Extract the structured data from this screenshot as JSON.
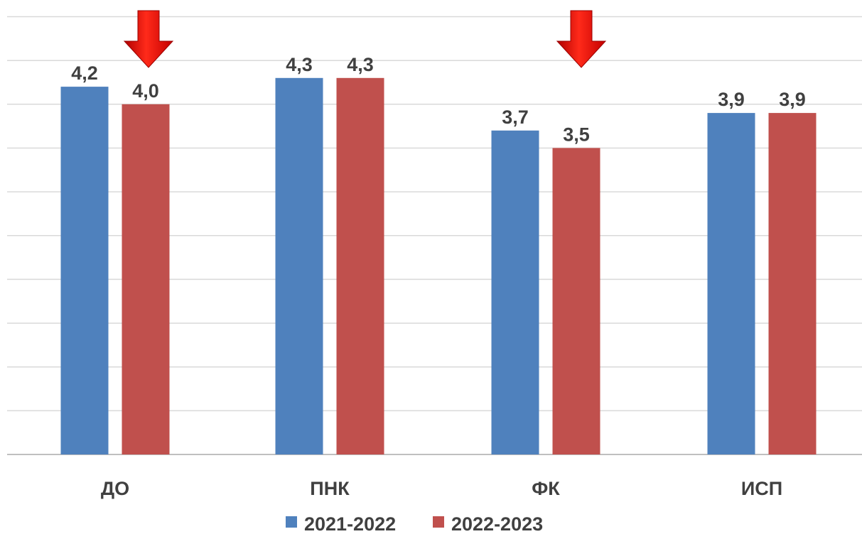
{
  "chart_data": {
    "type": "bar",
    "categories": [
      "ДО",
      "ПНК",
      "ФК",
      "ИСП"
    ],
    "series": [
      {
        "name": "2021-2022",
        "color": "#4f81bd",
        "values": [
          4.2,
          4.3,
          3.7,
          3.9
        ],
        "labels": [
          "4,2",
          "4,3",
          "3,7",
          "3,9"
        ]
      },
      {
        "name": "2022-2023",
        "color": "#c0504d",
        "values": [
          4.0,
          4.3,
          3.5,
          3.9
        ],
        "labels": [
          "4,0",
          "4,3",
          "3,5",
          "3,9"
        ]
      }
    ],
    "ylim": [
      0,
      5
    ],
    "grid": true,
    "legend_position": "bottom",
    "decrease_markers": {
      "icon": "down-arrow-icon",
      "color": "#e8120c",
      "categories": [
        "ДО",
        "ФК"
      ]
    }
  }
}
